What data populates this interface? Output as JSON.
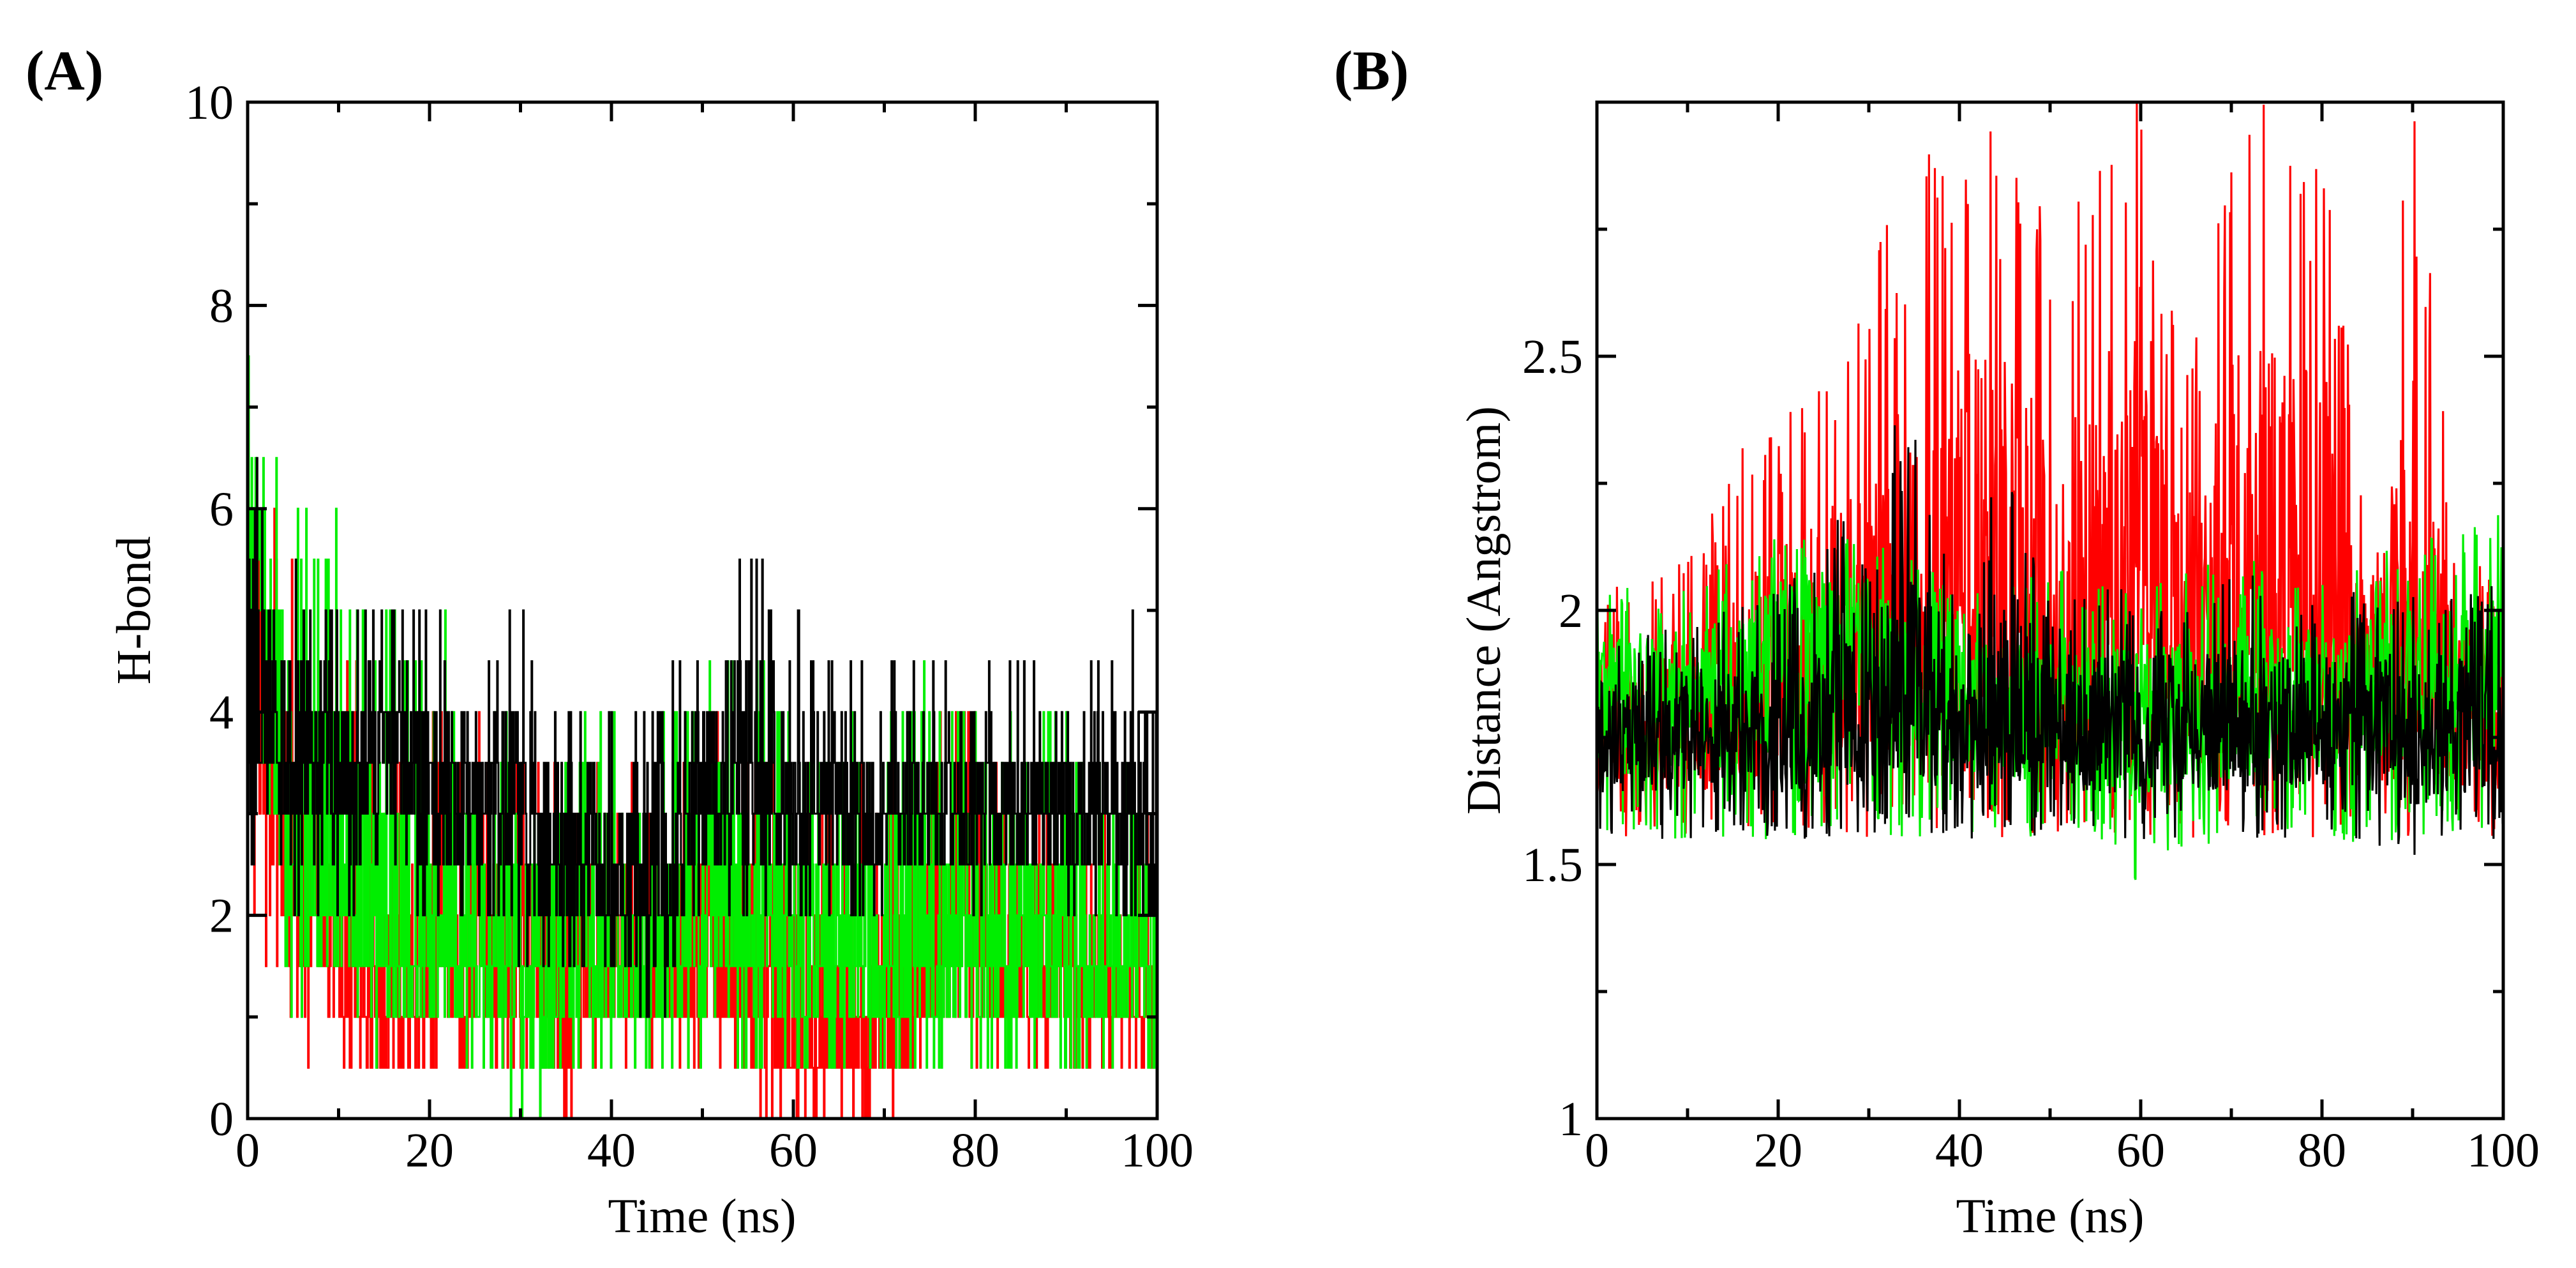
{
  "chart_data": [
    {
      "type": "line",
      "panel_label": "(A)",
      "title": "",
      "xlabel": "Time (ns)",
      "ylabel": "H-bond",
      "xlim": [
        0,
        100
      ],
      "ylim": [
        0,
        10
      ],
      "xticks": [
        "0",
        "20",
        "40",
        "60",
        "80",
        "100"
      ],
      "yticks": [
        "0",
        "2",
        "4",
        "6",
        "8",
        "10"
      ],
      "grid": false,
      "series": [
        {
          "name": "red",
          "color": "#ff0000",
          "x": [
            0,
            5,
            10,
            15,
            20,
            25,
            30,
            35,
            40,
            45,
            50,
            55,
            60,
            65,
            70,
            75,
            80,
            85,
            90,
            95,
            100
          ],
          "y": [
            5.5,
            2.5,
            1.5,
            1.0,
            1.5,
            1.5,
            1.5,
            1.0,
            1.5,
            1.5,
            1.5,
            1.5,
            0.5,
            0.5,
            1.0,
            1.5,
            1.5,
            1.5,
            1.5,
            1.0,
            1.0
          ],
          "min": [
            1.5,
            0.5,
            0.5,
            0.0,
            0.5,
            0.0,
            0.5,
            0.0,
            0.5,
            0.5,
            0.5,
            0.0,
            0.0,
            0.0,
            0.0,
            0.5,
            0.5,
            0.5,
            0.5,
            0.5,
            0.5
          ],
          "max": [
            7.0,
            5.5,
            4.5,
            4.5,
            4.0,
            4.0,
            3.5,
            4.0,
            3.5,
            3.5,
            4.0,
            4.5,
            4.0,
            3.0,
            4.0,
            4.5,
            4.0,
            3.5,
            3.5,
            3.0,
            3.0
          ]
        },
        {
          "name": "green",
          "color": "#00ee00",
          "x": [
            0,
            5,
            10,
            15,
            20,
            25,
            30,
            35,
            40,
            45,
            50,
            55,
            60,
            65,
            70,
            75,
            80,
            85,
            90,
            95,
            100
          ],
          "y": [
            6.0,
            2.5,
            2.0,
            1.5,
            2.0,
            1.5,
            1.5,
            1.5,
            1.5,
            1.5,
            2.0,
            2.0,
            1.5,
            1.5,
            1.5,
            1.5,
            1.5,
            1.5,
            1.5,
            1.5,
            1.5
          ],
          "min": [
            2.0,
            1.0,
            1.0,
            0.5,
            1.0,
            0.5,
            0.0,
            0.5,
            0.5,
            0.5,
            0.5,
            0.5,
            0.5,
            0.5,
            0.5,
            0.5,
            0.5,
            0.5,
            0.5,
            0.5,
            0.5
          ],
          "max": [
            8.0,
            6.0,
            6.0,
            5.0,
            5.0,
            4.5,
            4.0,
            4.0,
            4.0,
            4.0,
            4.5,
            5.0,
            4.0,
            4.0,
            4.0,
            4.5,
            4.0,
            4.0,
            4.0,
            3.5,
            3.5
          ]
        },
        {
          "name": "black",
          "color": "#000000",
          "x": [
            0,
            5,
            10,
            15,
            20,
            25,
            30,
            35,
            40,
            45,
            50,
            55,
            60,
            65,
            70,
            75,
            80,
            85,
            90,
            95,
            100
          ],
          "y": [
            4.0,
            3.5,
            3.5,
            3.5,
            3.0,
            3.0,
            3.0,
            2.5,
            2.5,
            2.5,
            3.0,
            3.5,
            3.0,
            3.0,
            3.0,
            3.0,
            3.0,
            3.0,
            3.0,
            3.0,
            3.0
          ],
          "min": [
            2.0,
            2.0,
            2.0,
            2.0,
            2.0,
            1.5,
            1.5,
            1.5,
            1.5,
            1.0,
            1.5,
            2.0,
            2.0,
            2.0,
            2.0,
            2.0,
            2.0,
            2.0,
            2.0,
            2.0,
            2.0
          ],
          "max": [
            7.0,
            5.5,
            5.0,
            5.0,
            5.0,
            4.5,
            5.0,
            4.0,
            4.0,
            4.0,
            5.0,
            6.0,
            5.0,
            4.5,
            4.5,
            4.5,
            4.5,
            4.5,
            4.5,
            4.5,
            5.5
          ]
        }
      ]
    },
    {
      "type": "line",
      "panel_label": "(B)",
      "title": "",
      "xlabel": "Time (ns)",
      "ylabel": "Distance (Angstrom)",
      "xlim": [
        0,
        100
      ],
      "ylim": [
        1,
        3
      ],
      "xticks": [
        "0",
        "20",
        "40",
        "60",
        "80",
        "100"
      ],
      "yticks": [
        "1",
        "1.5",
        "2",
        "2.5"
      ],
      "ytick_values": [
        1,
        1.5,
        2,
        2.5
      ],
      "grid": false,
      "series": [
        {
          "name": "red",
          "color": "#ff0000",
          "x": [
            0,
            5,
            10,
            15,
            20,
            25,
            30,
            35,
            40,
            45,
            50,
            55,
            60,
            65,
            70,
            75,
            80,
            85,
            90,
            95,
            100
          ],
          "y": [
            1.75,
            1.75,
            1.75,
            1.75,
            1.8,
            1.85,
            1.9,
            1.95,
            2.05,
            1.95,
            1.85,
            1.9,
            2.2,
            1.85,
            1.9,
            1.95,
            1.9,
            1.8,
            1.8,
            1.75,
            1.75
          ],
          "min": [
            1.55,
            1.55,
            1.55,
            1.55,
            1.56,
            1.56,
            1.55,
            1.55,
            1.55,
            1.55,
            1.55,
            1.55,
            1.55,
            1.55,
            1.55,
            1.55,
            1.55,
            1.55,
            1.55,
            1.55,
            1.55
          ],
          "max": [
            2.05,
            2.05,
            2.1,
            2.3,
            2.4,
            2.45,
            2.7,
            2.85,
            3.0,
            2.95,
            2.8,
            3.0,
            3.0,
            2.5,
            3.0,
            3.0,
            3.0,
            2.2,
            3.0,
            2.15,
            2.1
          ]
        },
        {
          "name": "green",
          "color": "#00ee00",
          "x": [
            0,
            5,
            10,
            15,
            20,
            25,
            30,
            35,
            40,
            45,
            50,
            55,
            60,
            65,
            70,
            75,
            80,
            85,
            90,
            95,
            100
          ],
          "y": [
            1.85,
            1.85,
            1.85,
            1.85,
            1.95,
            2.0,
            1.95,
            1.85,
            1.8,
            1.8,
            1.8,
            1.8,
            1.8,
            1.8,
            1.8,
            1.85,
            1.85,
            1.85,
            1.85,
            1.85,
            1.85
          ],
          "min": [
            1.55,
            1.52,
            1.55,
            1.55,
            1.55,
            1.55,
            1.55,
            1.55,
            1.56,
            1.56,
            1.55,
            1.55,
            1.45,
            1.53,
            1.55,
            1.55,
            1.55,
            1.53,
            1.55,
            1.55,
            1.55
          ],
          "max": [
            2.05,
            2.05,
            2.05,
            2.1,
            2.15,
            2.15,
            2.15,
            2.1,
            2.05,
            2.05,
            2.1,
            2.05,
            2.05,
            2.1,
            2.1,
            2.1,
            2.05,
            2.1,
            2.15,
            2.15,
            2.2
          ]
        },
        {
          "name": "black",
          "color": "#000000",
          "x": [
            0,
            5,
            10,
            15,
            20,
            25,
            30,
            35,
            40,
            45,
            50,
            55,
            60,
            65,
            70,
            75,
            80,
            85,
            90,
            95,
            100
          ],
          "y": [
            1.75,
            1.75,
            1.75,
            1.75,
            1.75,
            1.75,
            1.78,
            1.8,
            1.75,
            1.78,
            1.75,
            1.75,
            1.75,
            1.75,
            1.75,
            1.75,
            1.75,
            1.75,
            1.75,
            1.75,
            1.75
          ],
          "min": [
            1.55,
            1.55,
            1.55,
            1.55,
            1.55,
            1.55,
            1.56,
            1.56,
            1.55,
            1.55,
            1.55,
            1.55,
            1.55,
            1.55,
            1.55,
            1.55,
            1.55,
            1.55,
            1.5,
            1.55,
            1.55
          ],
          "max": [
            1.95,
            1.95,
            2.0,
            2.0,
            2.05,
            2.1,
            2.4,
            2.35,
            2.1,
            2.3,
            2.05,
            2.05,
            2.05,
            2.05,
            2.1,
            2.05,
            2.05,
            2.05,
            2.05,
            2.05,
            2.05
          ]
        }
      ]
    }
  ]
}
